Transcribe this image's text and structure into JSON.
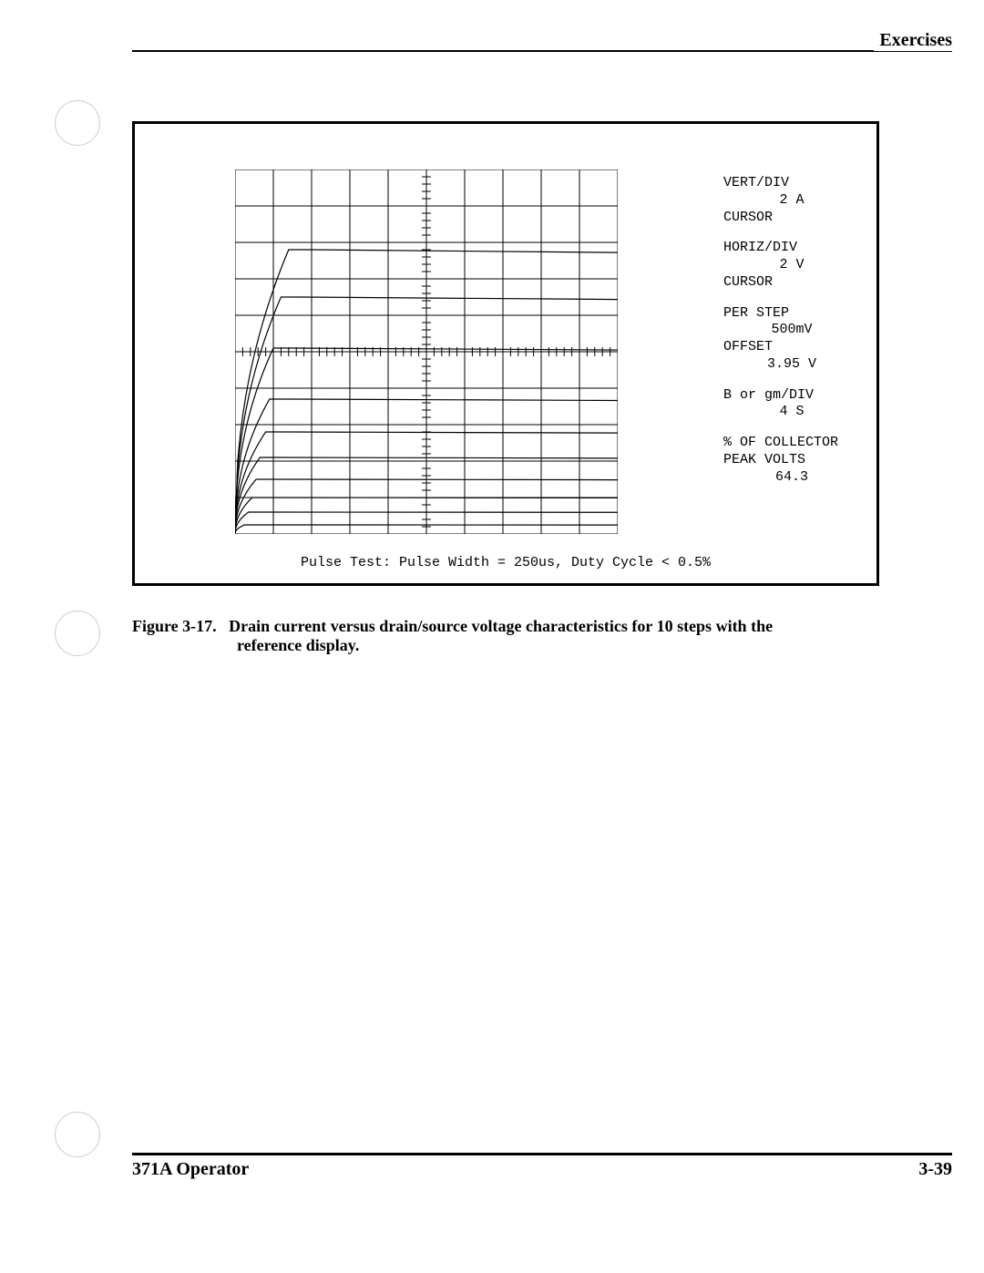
{
  "header": {
    "section": "Exercises"
  },
  "chart": {
    "type": "oscilloscope-curve-family",
    "grid": {
      "cols": 10,
      "rows": 10,
      "line_color": "#000000",
      "line_width": 1
    },
    "axis_ticks": {
      "center_cross_ticks": true,
      "tick_length": 5
    },
    "curves": [
      {
        "plateau_y_div": 7.8,
        "knee_x_div": 1.4,
        "color": "#000000",
        "width": 1.2
      },
      {
        "plateau_y_div": 6.5,
        "knee_x_div": 1.2,
        "color": "#000000",
        "width": 1.2
      },
      {
        "plateau_y_div": 5.1,
        "knee_x_div": 1.0,
        "color": "#000000",
        "width": 1.2
      },
      {
        "plateau_y_div": 3.7,
        "knee_x_div": 0.9,
        "color": "#000000",
        "width": 1.2
      },
      {
        "plateau_y_div": 2.8,
        "knee_x_div": 0.8,
        "color": "#000000",
        "width": 1.2
      },
      {
        "plateau_y_div": 2.1,
        "knee_x_div": 0.65,
        "color": "#000000",
        "width": 1.2
      },
      {
        "plateau_y_div": 1.5,
        "knee_x_div": 0.55,
        "color": "#000000",
        "width": 1.2
      },
      {
        "plateau_y_div": 1.0,
        "knee_x_div": 0.45,
        "color": "#000000",
        "width": 1.2
      },
      {
        "plateau_y_div": 0.6,
        "knee_x_div": 0.35,
        "color": "#000000",
        "width": 1.2
      },
      {
        "plateau_y_div": 0.25,
        "knee_x_div": 0.25,
        "color": "#000000",
        "width": 1.2
      }
    ],
    "pulse_test": "Pulse Test: Pulse Width = 250us,   Duty Cycle < 0.5%"
  },
  "info": {
    "vert_div_label": "VERT/DIV",
    "vert_div_value": "2 A",
    "cursor1": "CURSOR",
    "horiz_div_label": "HORIZ/DIV",
    "horiz_div_value": "2 V",
    "cursor2": "CURSOR",
    "per_step_label": "PER STEP",
    "per_step_value": "500mV",
    "offset_label": "OFFSET",
    "offset_value": "3.95 V",
    "gm_div_label": "B or gm/DIV",
    "gm_div_value": "4 S",
    "collector_label1": "% OF COLLECTOR",
    "collector_label2": "PEAK VOLTS",
    "collector_value": "64.3"
  },
  "caption": {
    "label": "Figure 3-17.",
    "text1": "Drain current versus drain/source voltage characteristics for 10 steps with the",
    "text2": "reference display."
  },
  "footer": {
    "left": "371A Operator",
    "right": "3-39"
  }
}
